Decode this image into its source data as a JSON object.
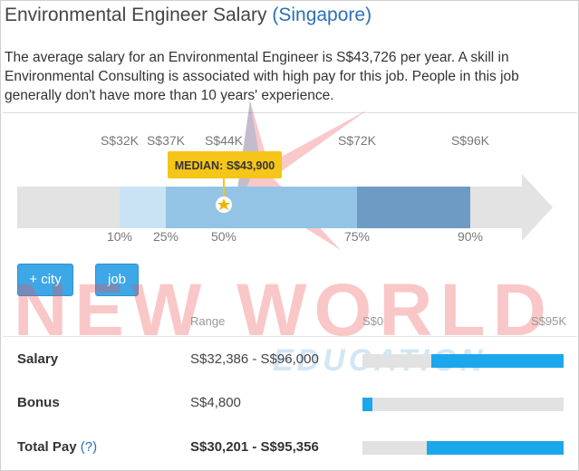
{
  "header": {
    "title": "Environmental Engineer Salary",
    "location": "(Singapore)"
  },
  "description": "The average salary for an Environmental Engineer is S$43,726 per year. A skill in Environmental Consulting is associated with high pay for this job. People in this job generally don't have more than 10 years' experience.",
  "chart_data": {
    "type": "range",
    "currency": "S$",
    "values_k": [
      32,
      37,
      44,
      72,
      96
    ],
    "value_labels": [
      "S$32K",
      "S$37K",
      "S$44K",
      "S$72K",
      "S$96K"
    ],
    "percentiles": [
      10,
      25,
      50,
      75,
      90
    ],
    "percentile_labels": [
      "10%",
      "25%",
      "50%",
      "75%",
      "90%"
    ],
    "median_label": "MEDIAN: S$43,900",
    "median_value": 43900
  },
  "buttons": {
    "city": "+ city",
    "job": "job"
  },
  "table": {
    "range_header": "Range",
    "scale_min": "S$0",
    "scale_max": "S$95K",
    "rows": [
      {
        "label": "Salary",
        "help": "",
        "value": "S$32,386 - S$96,000",
        "min": 32386,
        "max": 96000,
        "strong": false
      },
      {
        "label": "Bonus",
        "help": "",
        "value": "S$4,800",
        "min": 0,
        "max": 4800,
        "strong": false
      },
      {
        "label": "Total Pay",
        "help": "(?)",
        "value": "S$30,201 - S$95,356",
        "min": 30201,
        "max": 95356,
        "strong": true
      }
    ]
  },
  "watermark": {
    "line1": "NEW WORLD",
    "line2": "EDUCATION"
  },
  "colors": {
    "accent_blue": "#1ca7ec",
    "link_blue": "#2b6fb6",
    "median_badge": "#f5c518",
    "band_light": "#c9e3f5",
    "band_mid": "#93c4e6",
    "band_dark": "#6e9bc4"
  }
}
